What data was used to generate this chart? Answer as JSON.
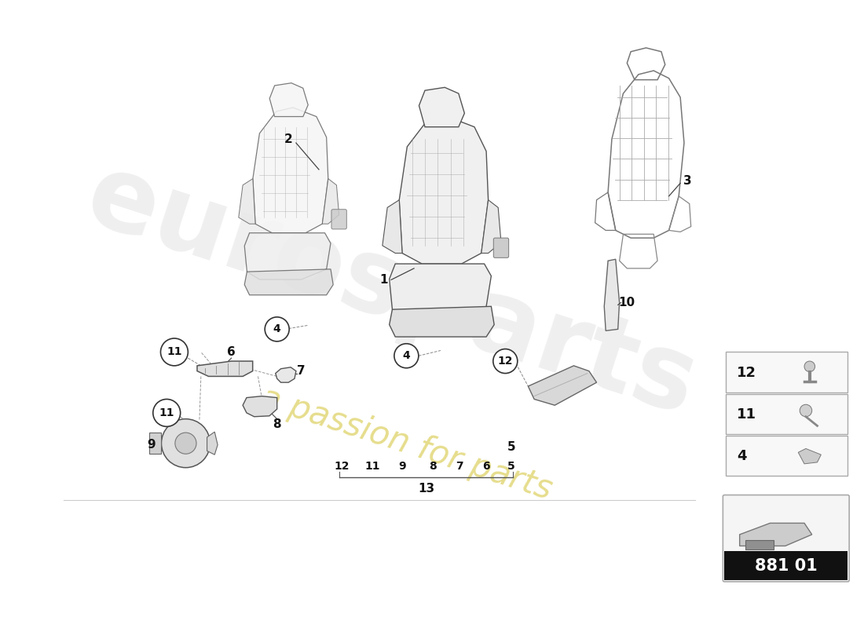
{
  "bg_color": "#ffffff",
  "part_number_text": "881 01",
  "watermark1": "eurosparts",
  "watermark2": "a passion for parts",
  "line_color": "#444444",
  "light_line": "#888888",
  "very_light": "#bbbbbb",
  "seat_face_color": "#f2f2f2",
  "seat_edge_color": "#555555",
  "shell_wire_color": "#777777",
  "legend_items": [
    "12",
    "11",
    "4"
  ],
  "label_fs": 11,
  "circle_label_fs": 10,
  "callout_fs": 11
}
